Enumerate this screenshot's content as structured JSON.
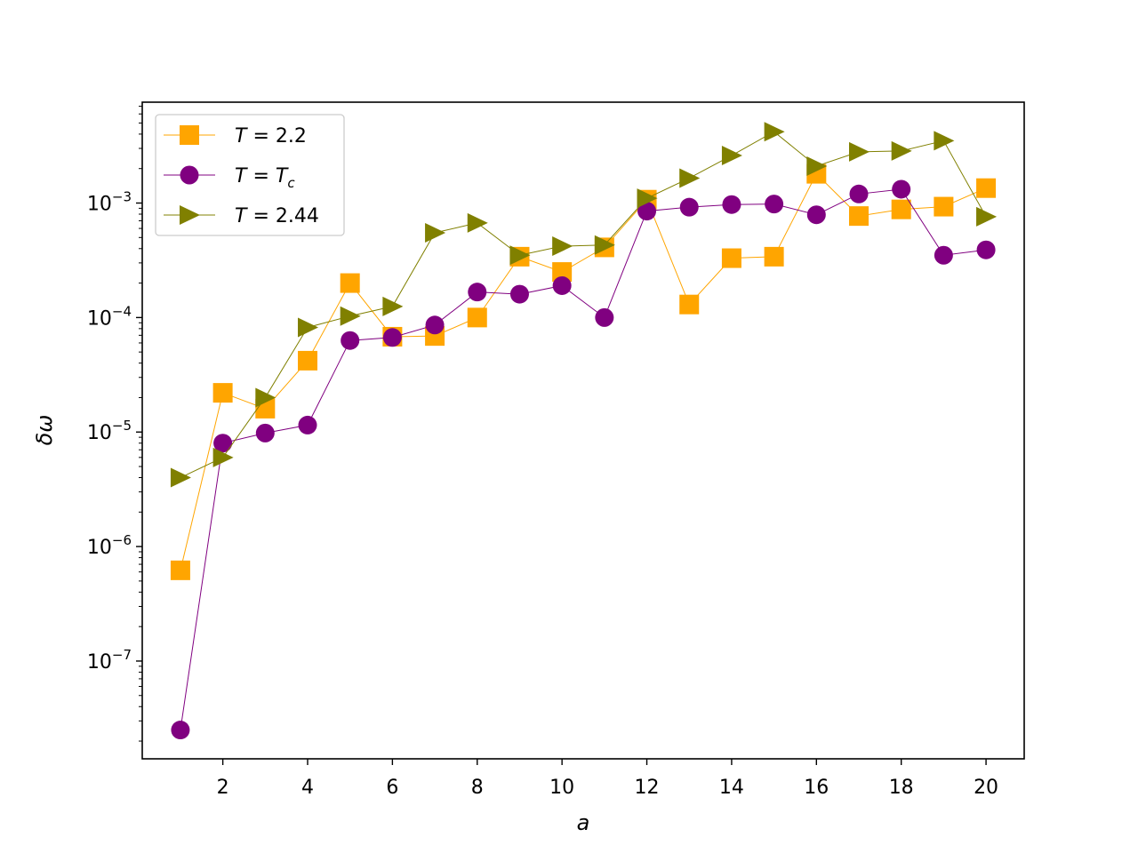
{
  "figure": {
    "background": "#ffffff"
  },
  "chart_data": {
    "type": "line",
    "xlabel": "a",
    "ylabel": "δω",
    "yscale": "log",
    "xlim": [
      0.1,
      20.9
    ],
    "ylim": [
      1.4e-08,
      0.0076
    ],
    "grid": false,
    "legend_position": "upper-left",
    "x_ticks": [
      2,
      4,
      6,
      8,
      10,
      12,
      14,
      16,
      18,
      20
    ],
    "y_ticks": [
      {
        "value": 1e-07,
        "base": "10",
        "exp": "−7"
      },
      {
        "value": 1e-06,
        "base": "10",
        "exp": "−6"
      },
      {
        "value": 1e-05,
        "base": "10",
        "exp": "−5"
      },
      {
        "value": 0.0001,
        "base": "10",
        "exp": "−4"
      },
      {
        "value": 0.001,
        "base": "10",
        "exp": "−3"
      }
    ],
    "x": [
      1,
      2,
      3,
      4,
      5,
      6,
      7,
      8,
      9,
      10,
      11,
      12,
      13,
      14,
      15,
      16,
      17,
      18,
      19,
      20
    ],
    "series": [
      {
        "name": "T = 2.2",
        "label_parts": {
          "var": "T",
          "eq": " = ",
          "val": "2.2",
          "sub": ""
        },
        "color": "#ffa500",
        "marker": "square",
        "values": [
          6.2e-07,
          2.2e-05,
          1.6e-05,
          4.2e-05,
          0.0002,
          6.8e-05,
          6.9e-05,
          0.0001,
          0.00034,
          0.00025,
          0.00041,
          0.00107,
          0.00013,
          0.00033,
          0.00034,
          0.0018,
          0.00077,
          0.00088,
          0.00093,
          0.00135
        ]
      },
      {
        "name": "T = T_c",
        "label_parts": {
          "var": "T",
          "eq": " = ",
          "val": "T",
          "sub": "c"
        },
        "color": "#800080",
        "marker": "circle",
        "values": [
          2.5e-08,
          8e-06,
          9.8e-06,
          1.15e-05,
          6.3e-05,
          6.7e-05,
          8.6e-05,
          0.000167,
          0.00016,
          0.00019,
          0.0001,
          0.00085,
          0.00092,
          0.00097,
          0.00098,
          0.00079,
          0.0012,
          0.00132,
          0.00035,
          0.00039
        ]
      },
      {
        "name": "T = 2.44",
        "label_parts": {
          "var": "T",
          "eq": " = ",
          "val": "2.44",
          "sub": ""
        },
        "color": "#808000",
        "marker": "triangle-right",
        "values": [
          4e-06,
          6e-06,
          2e-05,
          8.2e-05,
          0.000103,
          0.000125,
          0.00055,
          0.00067,
          0.00035,
          0.00042,
          0.00043,
          0.0011,
          0.00165,
          0.0026,
          0.0042,
          0.0021,
          0.0028,
          0.00285,
          0.0035,
          0.00076
        ]
      }
    ]
  }
}
